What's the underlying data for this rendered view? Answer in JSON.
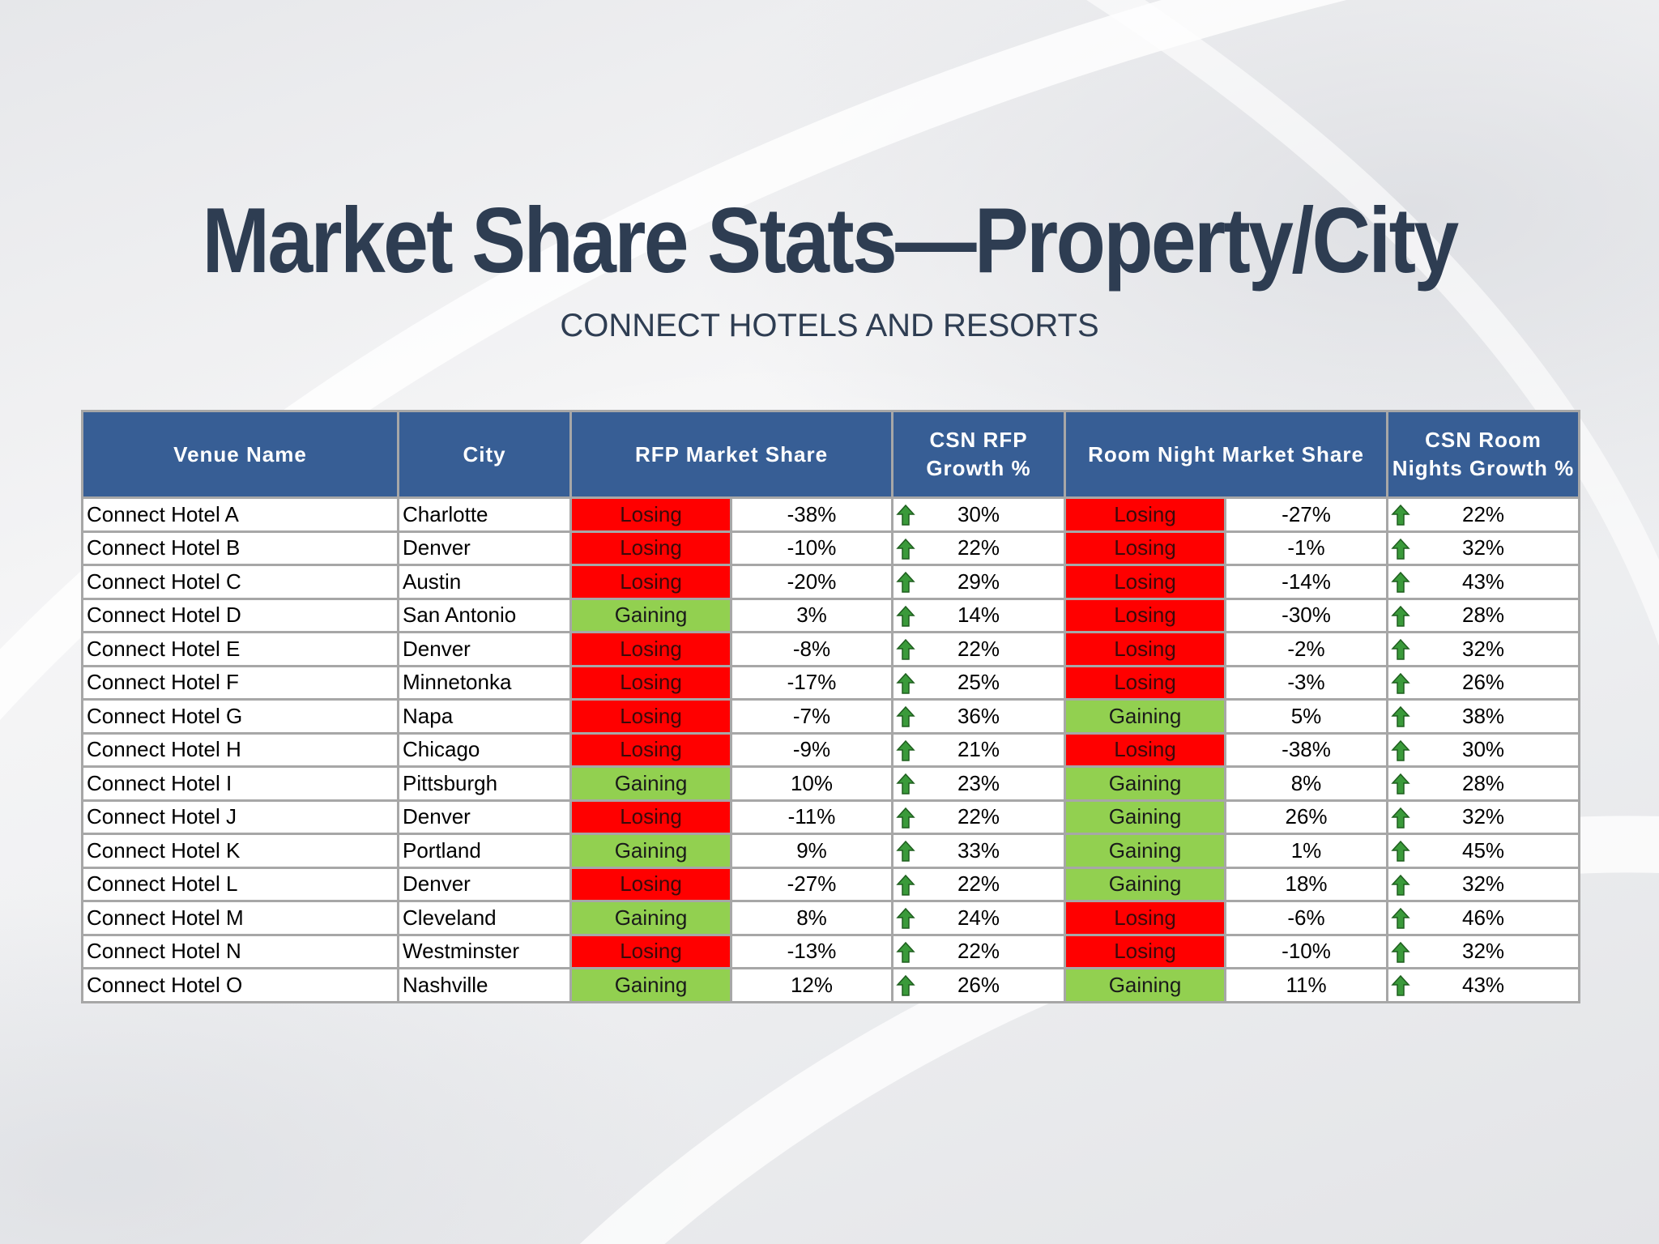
{
  "title": "Market Share Stats—Property/City",
  "subtitle": "CONNECT HOTELS AND RESORTS",
  "columns": {
    "venue": "Venue Name",
    "city": "City",
    "rfp_share": "RFP Market Share",
    "csn_rfp_1": "CSN RFP",
    "csn_rfp_2": "Growth %",
    "room_share": "Room Night Market Share",
    "csn_room_1": "CSN Room",
    "csn_room_2": "Nights Growth %"
  },
  "colors": {
    "header": "#375e95",
    "losing": "#ff0000",
    "gaining": "#92d050",
    "arrow": "#3a9a3a",
    "title": "#2e3d52"
  },
  "growth_icon": "green-up-arrow-icon",
  "rows": [
    {
      "venue": "Connect Hotel A",
      "city": "Charlotte",
      "rfp_status": "Losing",
      "rfp_pct": "-38%",
      "csn_rfp": "30%",
      "room_status": "Losing",
      "room_pct": "-27%",
      "csn_room": "22%"
    },
    {
      "venue": "Connect Hotel B",
      "city": "Denver",
      "rfp_status": "Losing",
      "rfp_pct": "-10%",
      "csn_rfp": "22%",
      "room_status": "Losing",
      "room_pct": "-1%",
      "csn_room": "32%"
    },
    {
      "venue": "Connect Hotel C",
      "city": "Austin",
      "rfp_status": "Losing",
      "rfp_pct": "-20%",
      "csn_rfp": "29%",
      "room_status": "Losing",
      "room_pct": "-14%",
      "csn_room": "43%"
    },
    {
      "venue": "Connect Hotel D",
      "city": "San Antonio",
      "rfp_status": "Gaining",
      "rfp_pct": "3%",
      "csn_rfp": "14%",
      "room_status": "Losing",
      "room_pct": "-30%",
      "csn_room": "28%"
    },
    {
      "venue": "Connect Hotel E",
      "city": "Denver",
      "rfp_status": "Losing",
      "rfp_pct": "-8%",
      "csn_rfp": "22%",
      "room_status": "Losing",
      "room_pct": "-2%",
      "csn_room": "32%"
    },
    {
      "venue": "Connect Hotel F",
      "city": "Minnetonka",
      "rfp_status": "Losing",
      "rfp_pct": "-17%",
      "csn_rfp": "25%",
      "room_status": "Losing",
      "room_pct": "-3%",
      "csn_room": "26%"
    },
    {
      "venue": "Connect Hotel G",
      "city": "Napa",
      "rfp_status": "Losing",
      "rfp_pct": "-7%",
      "csn_rfp": "36%",
      "room_status": "Gaining",
      "room_pct": "5%",
      "csn_room": "38%"
    },
    {
      "venue": "Connect Hotel H",
      "city": "Chicago",
      "rfp_status": "Losing",
      "rfp_pct": "-9%",
      "csn_rfp": "21%",
      "room_status": "Losing",
      "room_pct": "-38%",
      "csn_room": "30%"
    },
    {
      "venue": "Connect Hotel I",
      "city": "Pittsburgh",
      "rfp_status": "Gaining",
      "rfp_pct": "10%",
      "csn_rfp": "23%",
      "room_status": "Gaining",
      "room_pct": "8%",
      "csn_room": "28%"
    },
    {
      "venue": "Connect Hotel J",
      "city": "Denver",
      "rfp_status": "Losing",
      "rfp_pct": "-11%",
      "csn_rfp": "22%",
      "room_status": "Gaining",
      "room_pct": "26%",
      "csn_room": "32%"
    },
    {
      "venue": "Connect Hotel K",
      "city": "Portland",
      "rfp_status": "Gaining",
      "rfp_pct": "9%",
      "csn_rfp": "33%",
      "room_status": "Gaining",
      "room_pct": "1%",
      "csn_room": "45%"
    },
    {
      "venue": "Connect Hotel L",
      "city": "Denver",
      "rfp_status": "Losing",
      "rfp_pct": "-27%",
      "csn_rfp": "22%",
      "room_status": "Gaining",
      "room_pct": "18%",
      "csn_room": "32%"
    },
    {
      "venue": "Connect Hotel M",
      "city": "Cleveland",
      "rfp_status": "Gaining",
      "rfp_pct": "8%",
      "csn_rfp": "24%",
      "room_status": "Losing",
      "room_pct": "-6%",
      "csn_room": "46%"
    },
    {
      "venue": "Connect Hotel N",
      "city": "Westminster",
      "rfp_status": "Losing",
      "rfp_pct": "-13%",
      "csn_rfp": "22%",
      "room_status": "Losing",
      "room_pct": "-10%",
      "csn_room": "32%"
    },
    {
      "venue": "Connect Hotel O",
      "city": "Nashville",
      "rfp_status": "Gaining",
      "rfp_pct": "12%",
      "csn_rfp": "26%",
      "room_status": "Gaining",
      "room_pct": "11%",
      "csn_room": "43%"
    }
  ]
}
